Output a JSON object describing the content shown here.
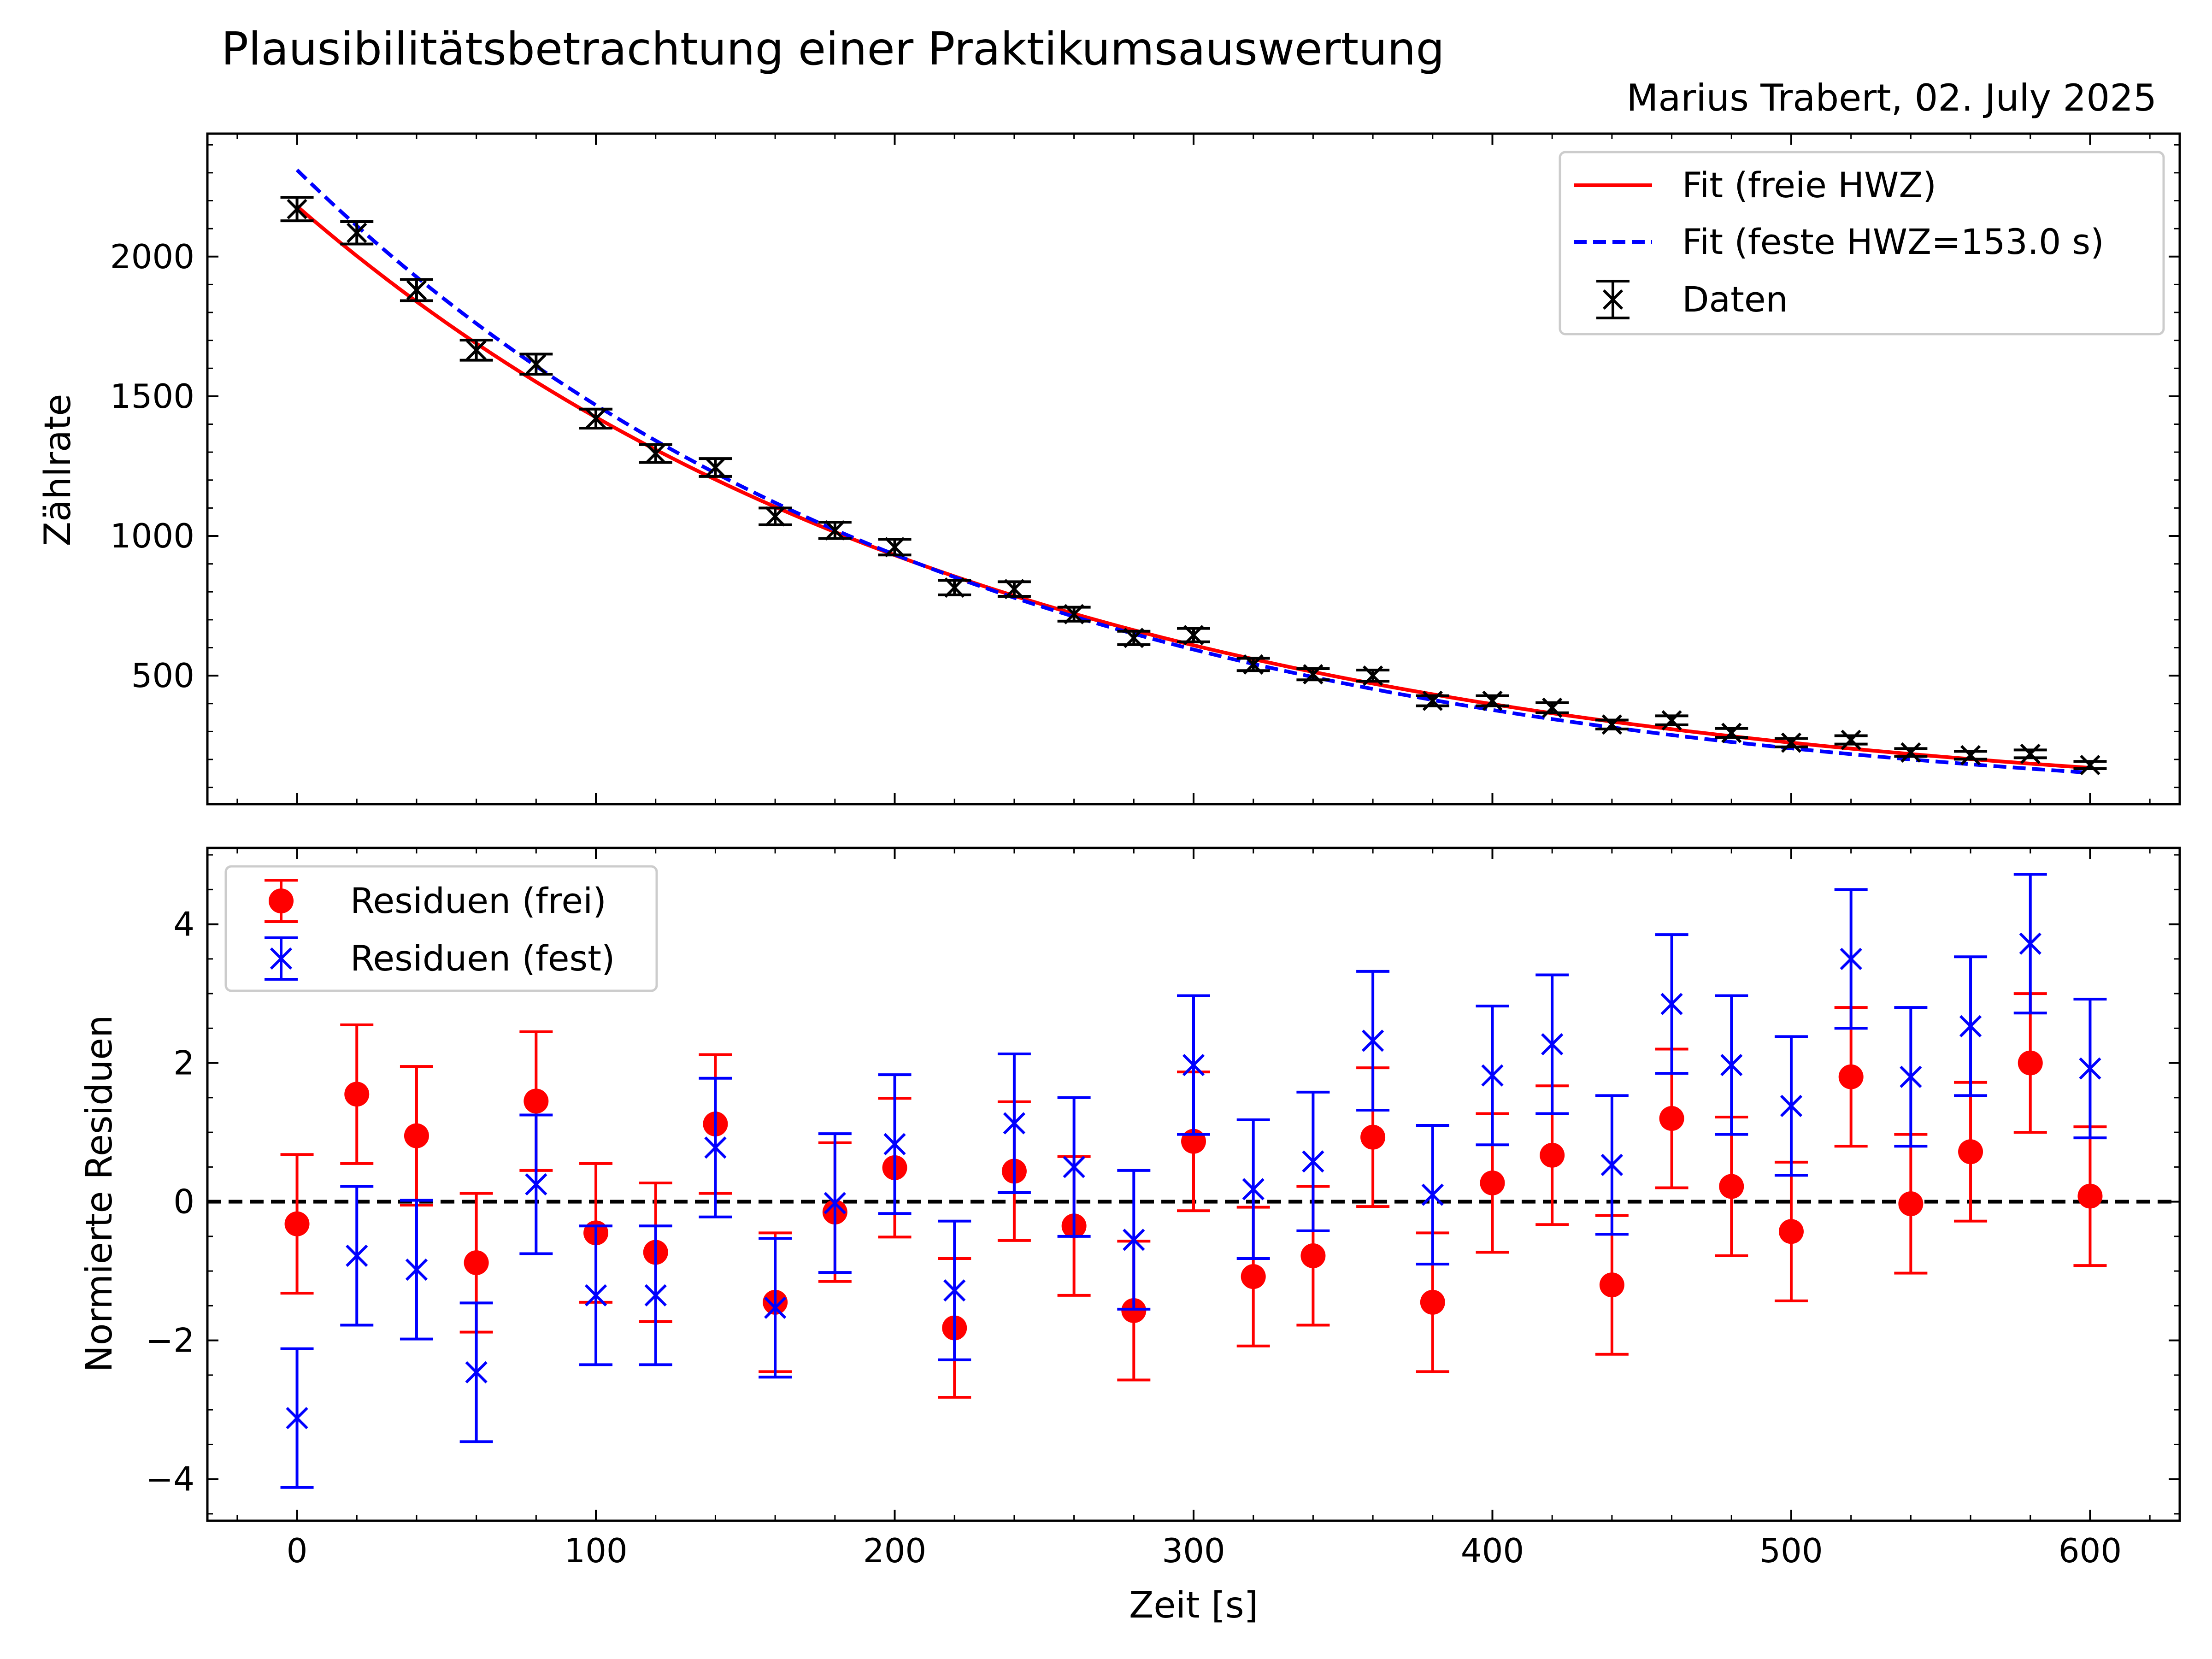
{
  "title": "Plausibilitätsbetrachtung einer Praktikumsauswertung",
  "subtitle": "Marius Trabert, 02. July 2025",
  "colors": {
    "fit_free": "#ff0000",
    "fit_fixed": "#0000ff",
    "data": "#000000",
    "zero_line": "#000000"
  },
  "chart_data": [
    {
      "type": "scatter",
      "panel": "top",
      "ylabel": "Zählrate",
      "xlabel": "",
      "xlim": [
        -30,
        630
      ],
      "ylim": [
        40,
        2440
      ],
      "yticks": [
        500,
        1000,
        1500,
        2000
      ],
      "legend_position": "top-right",
      "x": [
        0,
        20,
        40,
        60,
        80,
        100,
        120,
        140,
        160,
        180,
        200,
        220,
        240,
        260,
        280,
        300,
        320,
        340,
        360,
        380,
        400,
        420,
        440,
        460,
        480,
        500,
        520,
        540,
        560,
        580,
        600
      ],
      "series": [
        {
          "name": "Daten",
          "style": "errorbar-x",
          "values": [
            2170,
            2085,
            1880,
            1665,
            1615,
            1420,
            1295,
            1245,
            1070,
            1020,
            960,
            815,
            810,
            720,
            635,
            645,
            540,
            505,
            500,
            410,
            410,
            385,
            325,
            340,
            295,
            260,
            270,
            225,
            215,
            220,
            180
          ],
          "yerr": [
            42,
            40,
            38,
            36,
            36,
            34,
            32,
            32,
            30,
            29,
            28,
            26,
            26,
            25,
            24,
            24,
            22,
            20,
            20,
            18,
            18,
            18,
            16,
            16,
            16,
            15,
            15,
            14,
            14,
            14,
            13
          ]
        },
        {
          "name": "Fit (freie HWZ)",
          "style": "line-solid",
          "function": "exponential",
          "amplitude": 2180,
          "half_life": 163,
          "values": [
            2180,
            2000,
            1840,
            1690,
            1550,
            1420,
            1300,
            1195,
            1095,
            1005,
            925,
            850,
            780,
            715,
            655,
            600,
            552,
            508,
            467,
            428,
            393,
            361,
            331,
            304,
            279,
            256,
            235,
            216,
            198,
            182,
            167
          ]
        },
        {
          "name": "Fit (feste HWZ=153.0 s)",
          "style": "line-dashed",
          "function": "exponential",
          "amplitude": 2310,
          "half_life": 153.0,
          "values": [
            2310,
            2104,
            1916,
            1744,
            1588,
            1446,
            1317,
            1199,
            1092,
            994,
            905,
            824,
            750,
            683,
            622,
            567,
            516,
            470,
            428,
            390,
            355,
            323,
            294,
            268,
            244,
            222,
            202,
            184,
            168,
            153,
            139
          ]
        }
      ]
    },
    {
      "type": "scatter",
      "panel": "bottom",
      "xlabel": "Zeit [s]",
      "ylabel": "Normierte Residuen",
      "xlim": [
        -30,
        630
      ],
      "ylim": [
        -4.6,
        5.1
      ],
      "xticks": [
        0,
        100,
        200,
        300,
        400,
        500,
        600
      ],
      "yticks": [
        -4,
        -2,
        0,
        2,
        4
      ],
      "legend_position": "top-left",
      "reference_line": 0,
      "x": [
        0,
        20,
        40,
        60,
        80,
        100,
        120,
        140,
        160,
        180,
        200,
        220,
        240,
        260,
        280,
        300,
        320,
        340,
        360,
        380,
        400,
        420,
        440,
        460,
        480,
        500,
        520,
        540,
        560,
        580,
        600
      ],
      "series": [
        {
          "name": "Residuen (frei)",
          "marker": "circle",
          "yerr": 1,
          "values": [
            -0.32,
            1.55,
            0.95,
            -0.88,
            1.45,
            -0.45,
            -0.73,
            1.12,
            -1.45,
            -0.15,
            0.49,
            -1.82,
            0.44,
            -0.35,
            -1.57,
            0.87,
            -1.08,
            -0.78,
            0.93,
            -1.45,
            0.27,
            0.67,
            -1.2,
            1.2,
            0.22,
            -0.43,
            1.8,
            -0.03,
            0.72,
            2.0,
            0.08
          ]
        },
        {
          "name": "Residuen (fest)",
          "marker": "x",
          "yerr": 1,
          "values": [
            -3.12,
            -0.78,
            -0.98,
            -2.46,
            0.25,
            -1.35,
            -1.35,
            0.78,
            -1.53,
            -0.02,
            0.83,
            -1.28,
            1.13,
            0.5,
            -0.55,
            1.97,
            0.18,
            0.58,
            2.32,
            0.1,
            1.82,
            2.27,
            0.53,
            2.85,
            1.97,
            1.38,
            3.5,
            1.8,
            2.53,
            3.72,
            1.92
          ]
        }
      ]
    }
  ]
}
